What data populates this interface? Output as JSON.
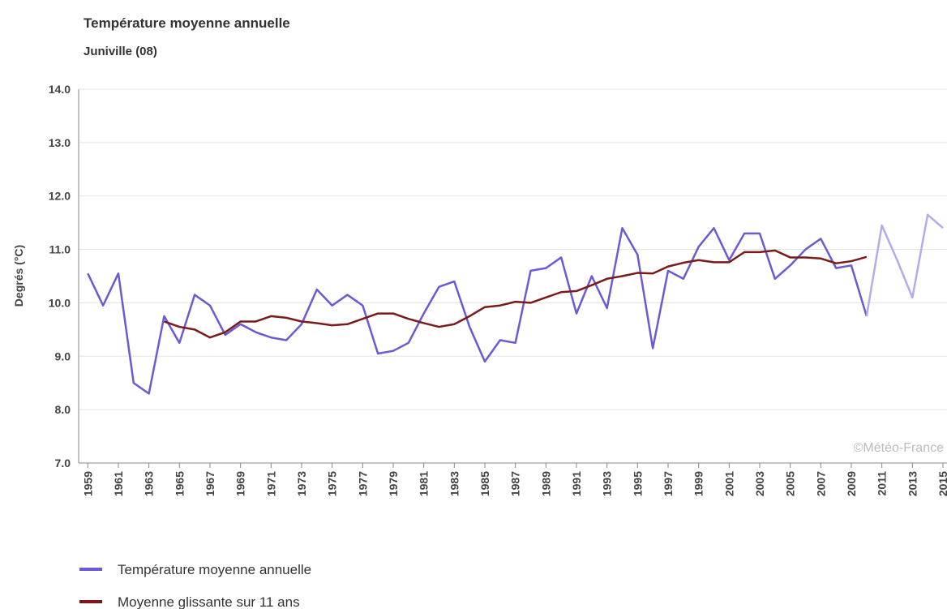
{
  "chart_data": {
    "type": "line",
    "title": "Température moyenne annuelle",
    "subtitle": "Juniville (08)",
    "y_label": "Degrés (°C)",
    "annotation": "©Météo-France",
    "x": [
      1959,
      1960,
      1961,
      1962,
      1963,
      1964,
      1965,
      1966,
      1967,
      1968,
      1969,
      1970,
      1971,
      1972,
      1973,
      1974,
      1975,
      1976,
      1977,
      1978,
      1979,
      1980,
      1981,
      1982,
      1983,
      1984,
      1985,
      1986,
      1987,
      1988,
      1989,
      1990,
      1991,
      1992,
      1993,
      1994,
      1995,
      1996,
      1997,
      1998,
      1999,
      2000,
      2001,
      2002,
      2003,
      2004,
      2005,
      2006,
      2007,
      2008,
      2009,
      2010,
      2011,
      2012,
      2013,
      2014,
      2015
    ],
    "xlim": [
      1958.4,
      2015
    ],
    "xticks": [
      1959,
      1961,
      1963,
      1965,
      1967,
      1969,
      1971,
      1973,
      1975,
      1977,
      1979,
      1981,
      1983,
      1985,
      1987,
      1989,
      1991,
      1993,
      1995,
      1997,
      1999,
      2001,
      2003,
      2005,
      2007,
      2009,
      2011,
      2013,
      2015
    ],
    "ylim": [
      7,
      14
    ],
    "yticks": [
      {
        "value": 7,
        "label": "7.0"
      },
      {
        "value": 8,
        "label": "8.0"
      },
      {
        "value": 9,
        "label": "9.0"
      },
      {
        "value": 10,
        "label": "10.0"
      },
      {
        "value": 11,
        "label": "11.0"
      },
      {
        "value": 12,
        "label": "12.0"
      },
      {
        "value": 13,
        "label": "13.0"
      },
      {
        "value": 14,
        "label": "14.0"
      }
    ],
    "grid": true,
    "series": [
      {
        "name": "Température moyenne annuelle",
        "color": "#6a5ad6",
        "values": [
          10.55,
          9.95,
          10.55,
          8.5,
          8.3,
          9.75,
          9.25,
          10.15,
          9.95,
          9.4,
          9.6,
          9.45,
          9.35,
          9.3,
          9.6,
          10.25,
          9.95,
          10.15,
          9.95,
          9.05,
          9.1,
          9.25,
          9.8,
          10.3,
          10.4,
          9.55,
          8.9,
          9.3,
          9.25,
          10.6,
          10.65,
          10.85,
          9.8,
          10.5,
          9.9,
          11.4,
          10.9,
          9.15,
          10.6,
          10.45,
          11.05,
          11.4,
          10.8,
          11.3,
          11.3,
          10.45,
          10.7,
          11.0,
          11.2,
          10.65,
          10.7,
          9.75,
          null,
          null,
          null,
          null,
          null
        ]
      },
      {
        "color": "#b4abee",
        "values": [
          null,
          null,
          null,
          null,
          null,
          null,
          null,
          null,
          null,
          null,
          null,
          null,
          null,
          null,
          null,
          null,
          null,
          null,
          null,
          null,
          null,
          null,
          null,
          null,
          null,
          null,
          null,
          null,
          null,
          null,
          null,
          null,
          null,
          null,
          null,
          null,
          null,
          null,
          null,
          null,
          null,
          null,
          null,
          null,
          null,
          null,
          null,
          null,
          null,
          null,
          null,
          9.75,
          11.45,
          10.8,
          10.1,
          11.65,
          11.4
        ]
      },
      {
        "name": "Moyenne glissante sur 11 ans",
        "color": "#7a1a1a",
        "values": [
          null,
          null,
          null,
          null,
          null,
          9.65,
          9.55,
          9.5,
          9.35,
          9.45,
          9.65,
          9.65,
          9.75,
          9.72,
          9.65,
          9.62,
          9.58,
          9.6,
          9.7,
          9.8,
          9.8,
          9.7,
          9.62,
          9.55,
          9.6,
          9.75,
          9.92,
          9.95,
          10.02,
          10.0,
          10.1,
          10.2,
          10.22,
          10.33,
          10.45,
          10.5,
          10.56,
          10.55,
          10.68,
          10.75,
          10.8,
          10.76,
          10.76,
          10.95,
          10.95,
          10.98,
          10.85,
          10.85,
          10.83,
          10.74,
          10.78,
          10.86,
          null,
          null,
          null,
          null,
          null
        ]
      }
    ]
  }
}
